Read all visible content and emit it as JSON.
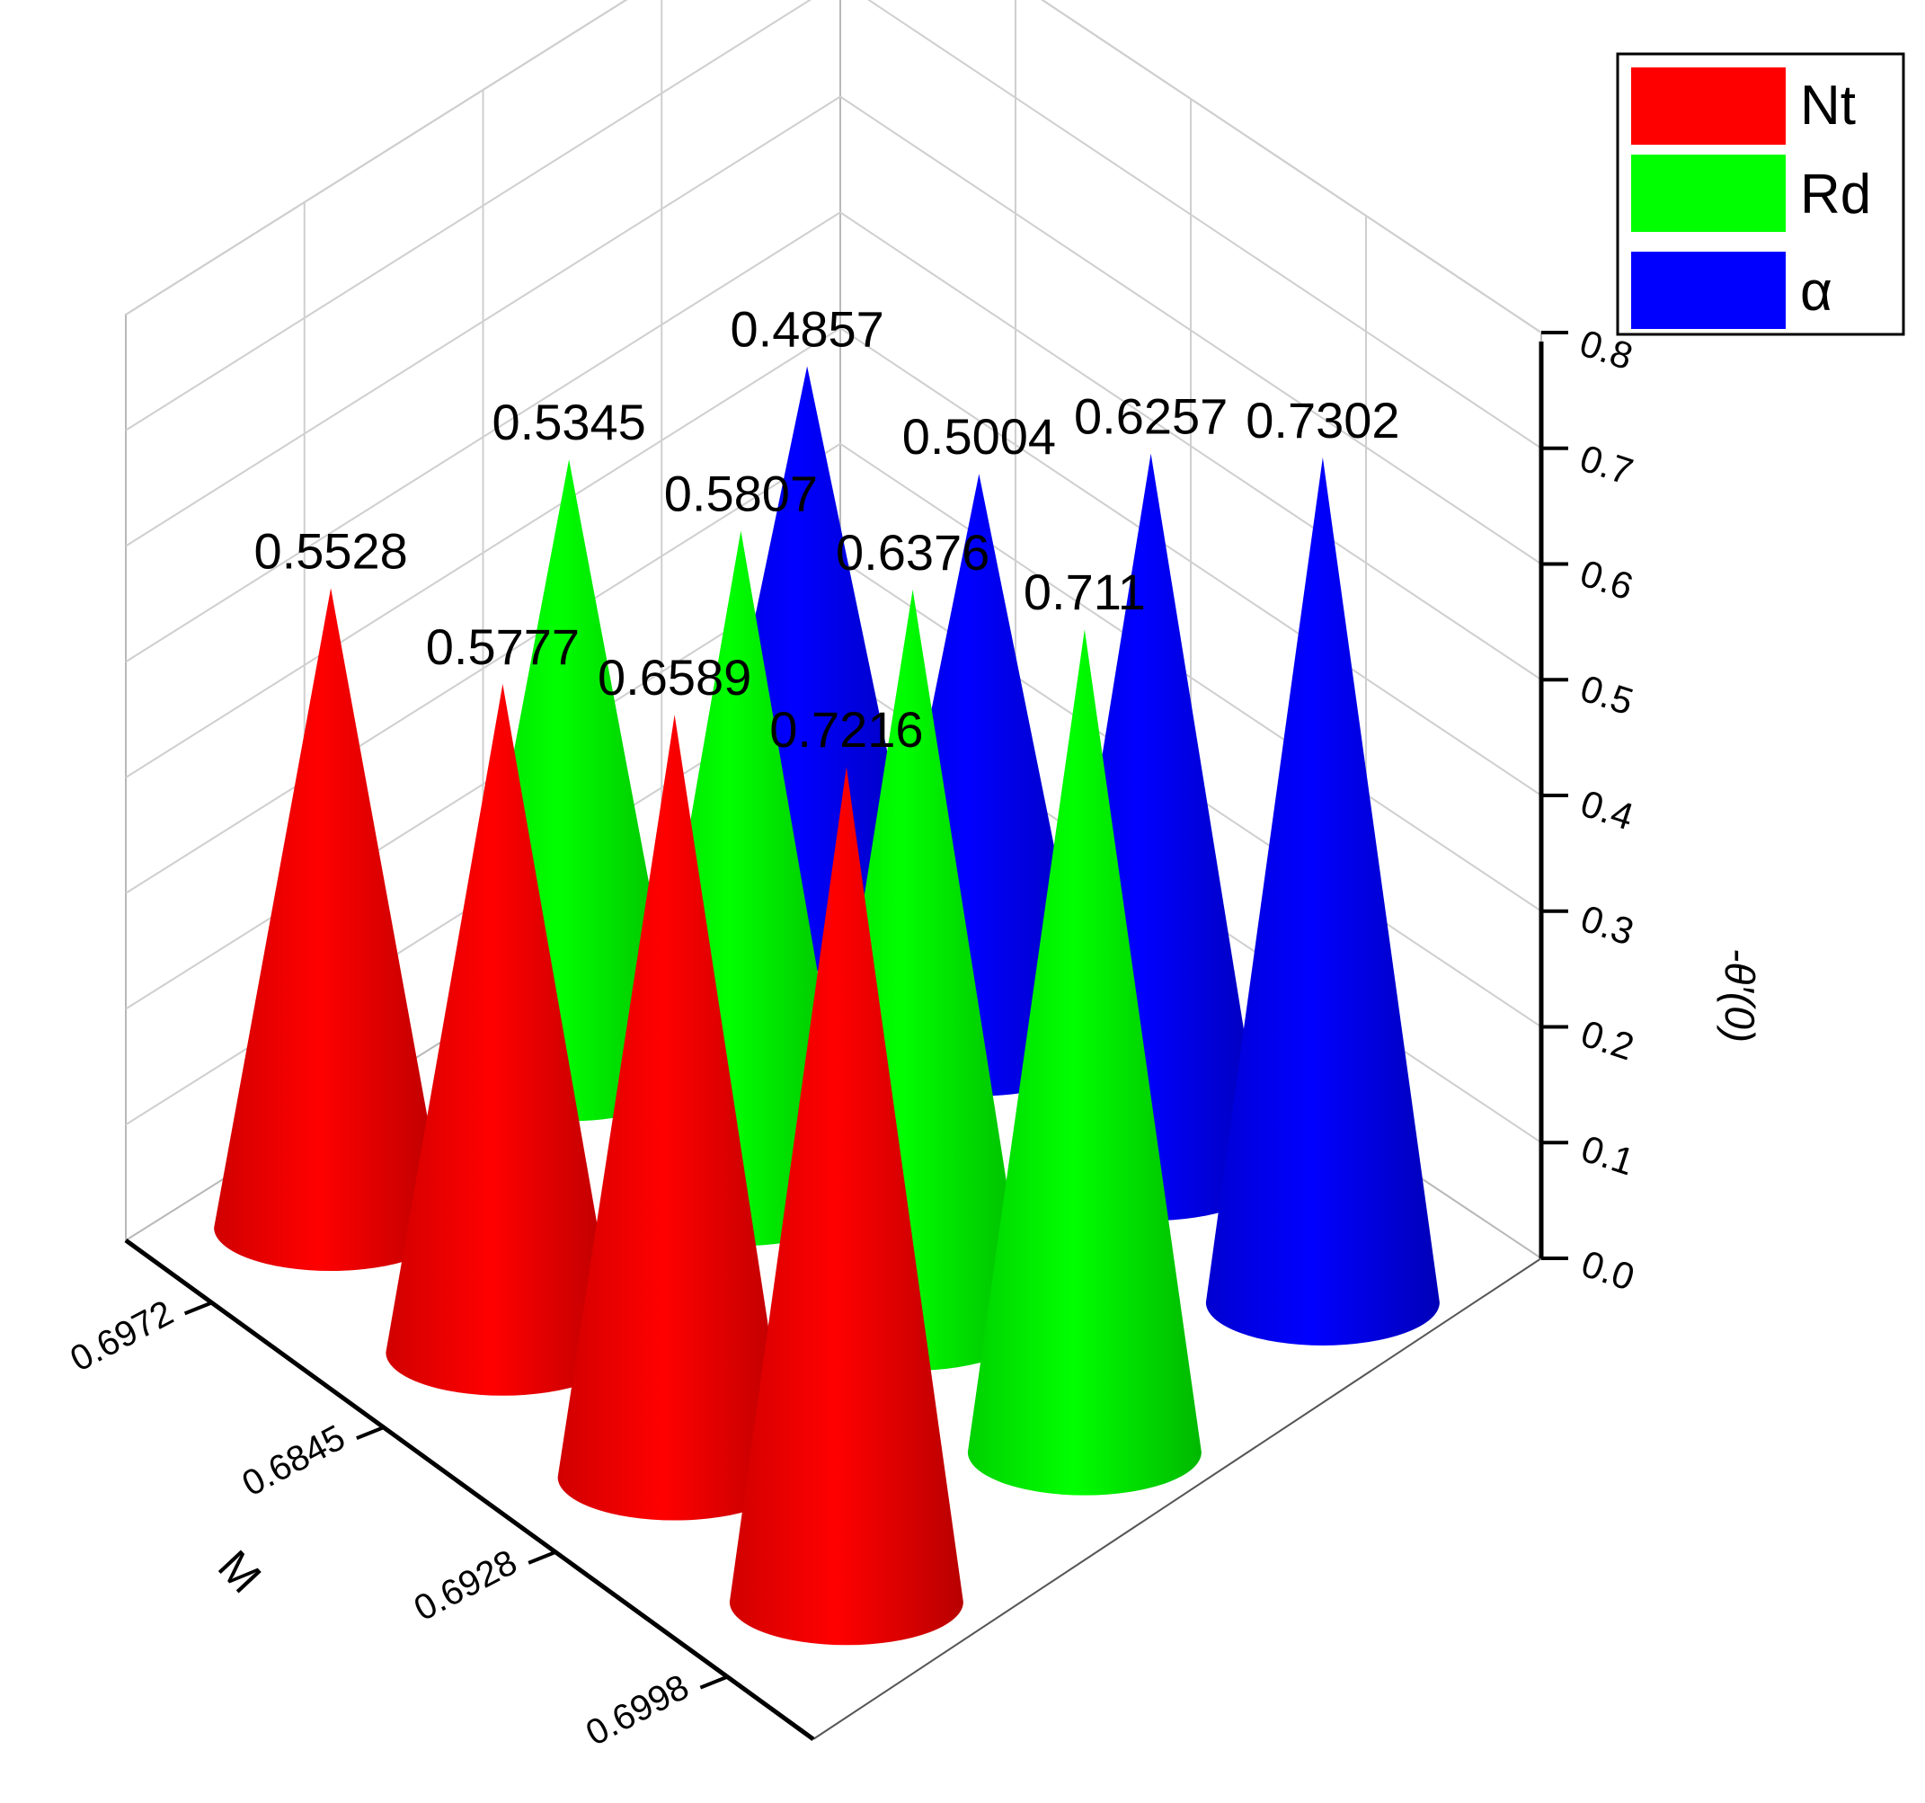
{
  "chart_data": {
    "type": "3d-cone-bar",
    "title": "",
    "z_axis_label": "-θ′(0)",
    "x_axis_label": "M",
    "zlim": [
      0,
      0.8
    ],
    "z_ticks": [
      "0.0",
      "0.1",
      "0.2",
      "0.3",
      "0.4",
      "0.5",
      "0.6",
      "0.7",
      "0.8"
    ],
    "categories": [
      "0.6972",
      "0.6845",
      "0.6928",
      "0.6998"
    ],
    "legend_position": "top-right",
    "grid": true,
    "series": [
      {
        "name": "Nt",
        "color": "#ff0000",
        "values": [
          0.5528,
          0.5777,
          0.6589,
          0.7216
        ],
        "labels": [
          "0.5528",
          "0.5777",
          "0.6589",
          "0.7216"
        ]
      },
      {
        "name": "Rd",
        "color": "#00ff00",
        "values": [
          0.5345,
          0.5807,
          0.6376,
          0.711
        ],
        "labels": [
          "0.5345",
          "0.5807",
          "0.6376",
          "0.711"
        ]
      },
      {
        "name": "α",
        "color": "#0000ff",
        "values": [
          0.4857,
          0.5004,
          0.6257,
          0.7302
        ],
        "labels": [
          "0.4857",
          "0.5004",
          "0.6257",
          "0.7302"
        ]
      }
    ]
  }
}
